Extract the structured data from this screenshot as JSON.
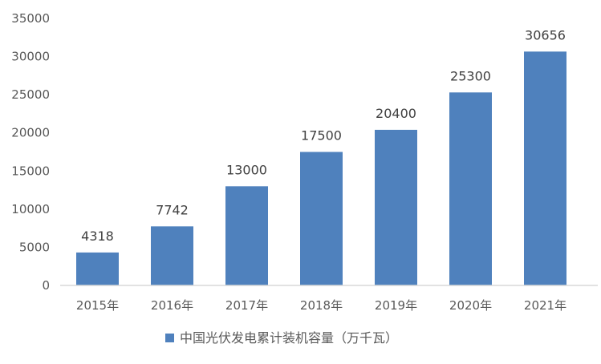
{
  "chart_data": {
    "type": "bar",
    "categories": [
      "2015年",
      "2016年",
      "2017年",
      "2018年",
      "2019年",
      "2020年",
      "2021年"
    ],
    "series": [
      {
        "name": "中国光伏发电累计装机容量（万千瓦）",
        "values": [
          4318,
          7742,
          13000,
          17500,
          20400,
          25300,
          30656
        ],
        "color": "#4F81BD"
      }
    ],
    "data_labels": [
      "4318",
      "7742",
      "13000",
      "17500",
      "20400",
      "25300",
      "30656"
    ],
    "y_ticks": [
      "0",
      "5000",
      "10000",
      "15000",
      "20000",
      "25000",
      "30000",
      "35000"
    ],
    "ylim": [
      0,
      35000
    ],
    "grid": false,
    "legend_position": "bottom",
    "title": "",
    "xlabel": "",
    "ylabel": ""
  }
}
